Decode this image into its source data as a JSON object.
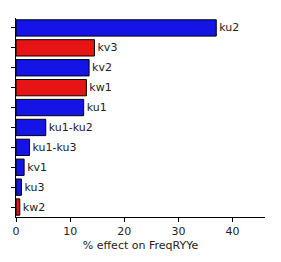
{
  "chart_data": {
    "type": "bar",
    "orientation": "horizontal",
    "x_label": "% effect on FreqRYYe",
    "categories": [
      "ku2",
      "kv3",
      "kv2",
      "kw1",
      "ku1",
      "ku1-ku2",
      "ku1-ku3",
      "kv1",
      "ku3",
      "kw2"
    ],
    "values": [
      37,
      14.5,
      13.5,
      13,
      12.5,
      5.5,
      2.5,
      1.5,
      1,
      0.7
    ],
    "colors": [
      "#1414e6",
      "#e61414",
      "#1414e6",
      "#e61414",
      "#1414e6",
      "#1414e6",
      "#1414e6",
      "#1414e6",
      "#1414e6",
      "#e61414"
    ],
    "xlim": [
      0,
      46
    ],
    "xticks": [
      0,
      10,
      20,
      30,
      40
    ],
    "grid": false,
    "tick_labels": "x"
  }
}
